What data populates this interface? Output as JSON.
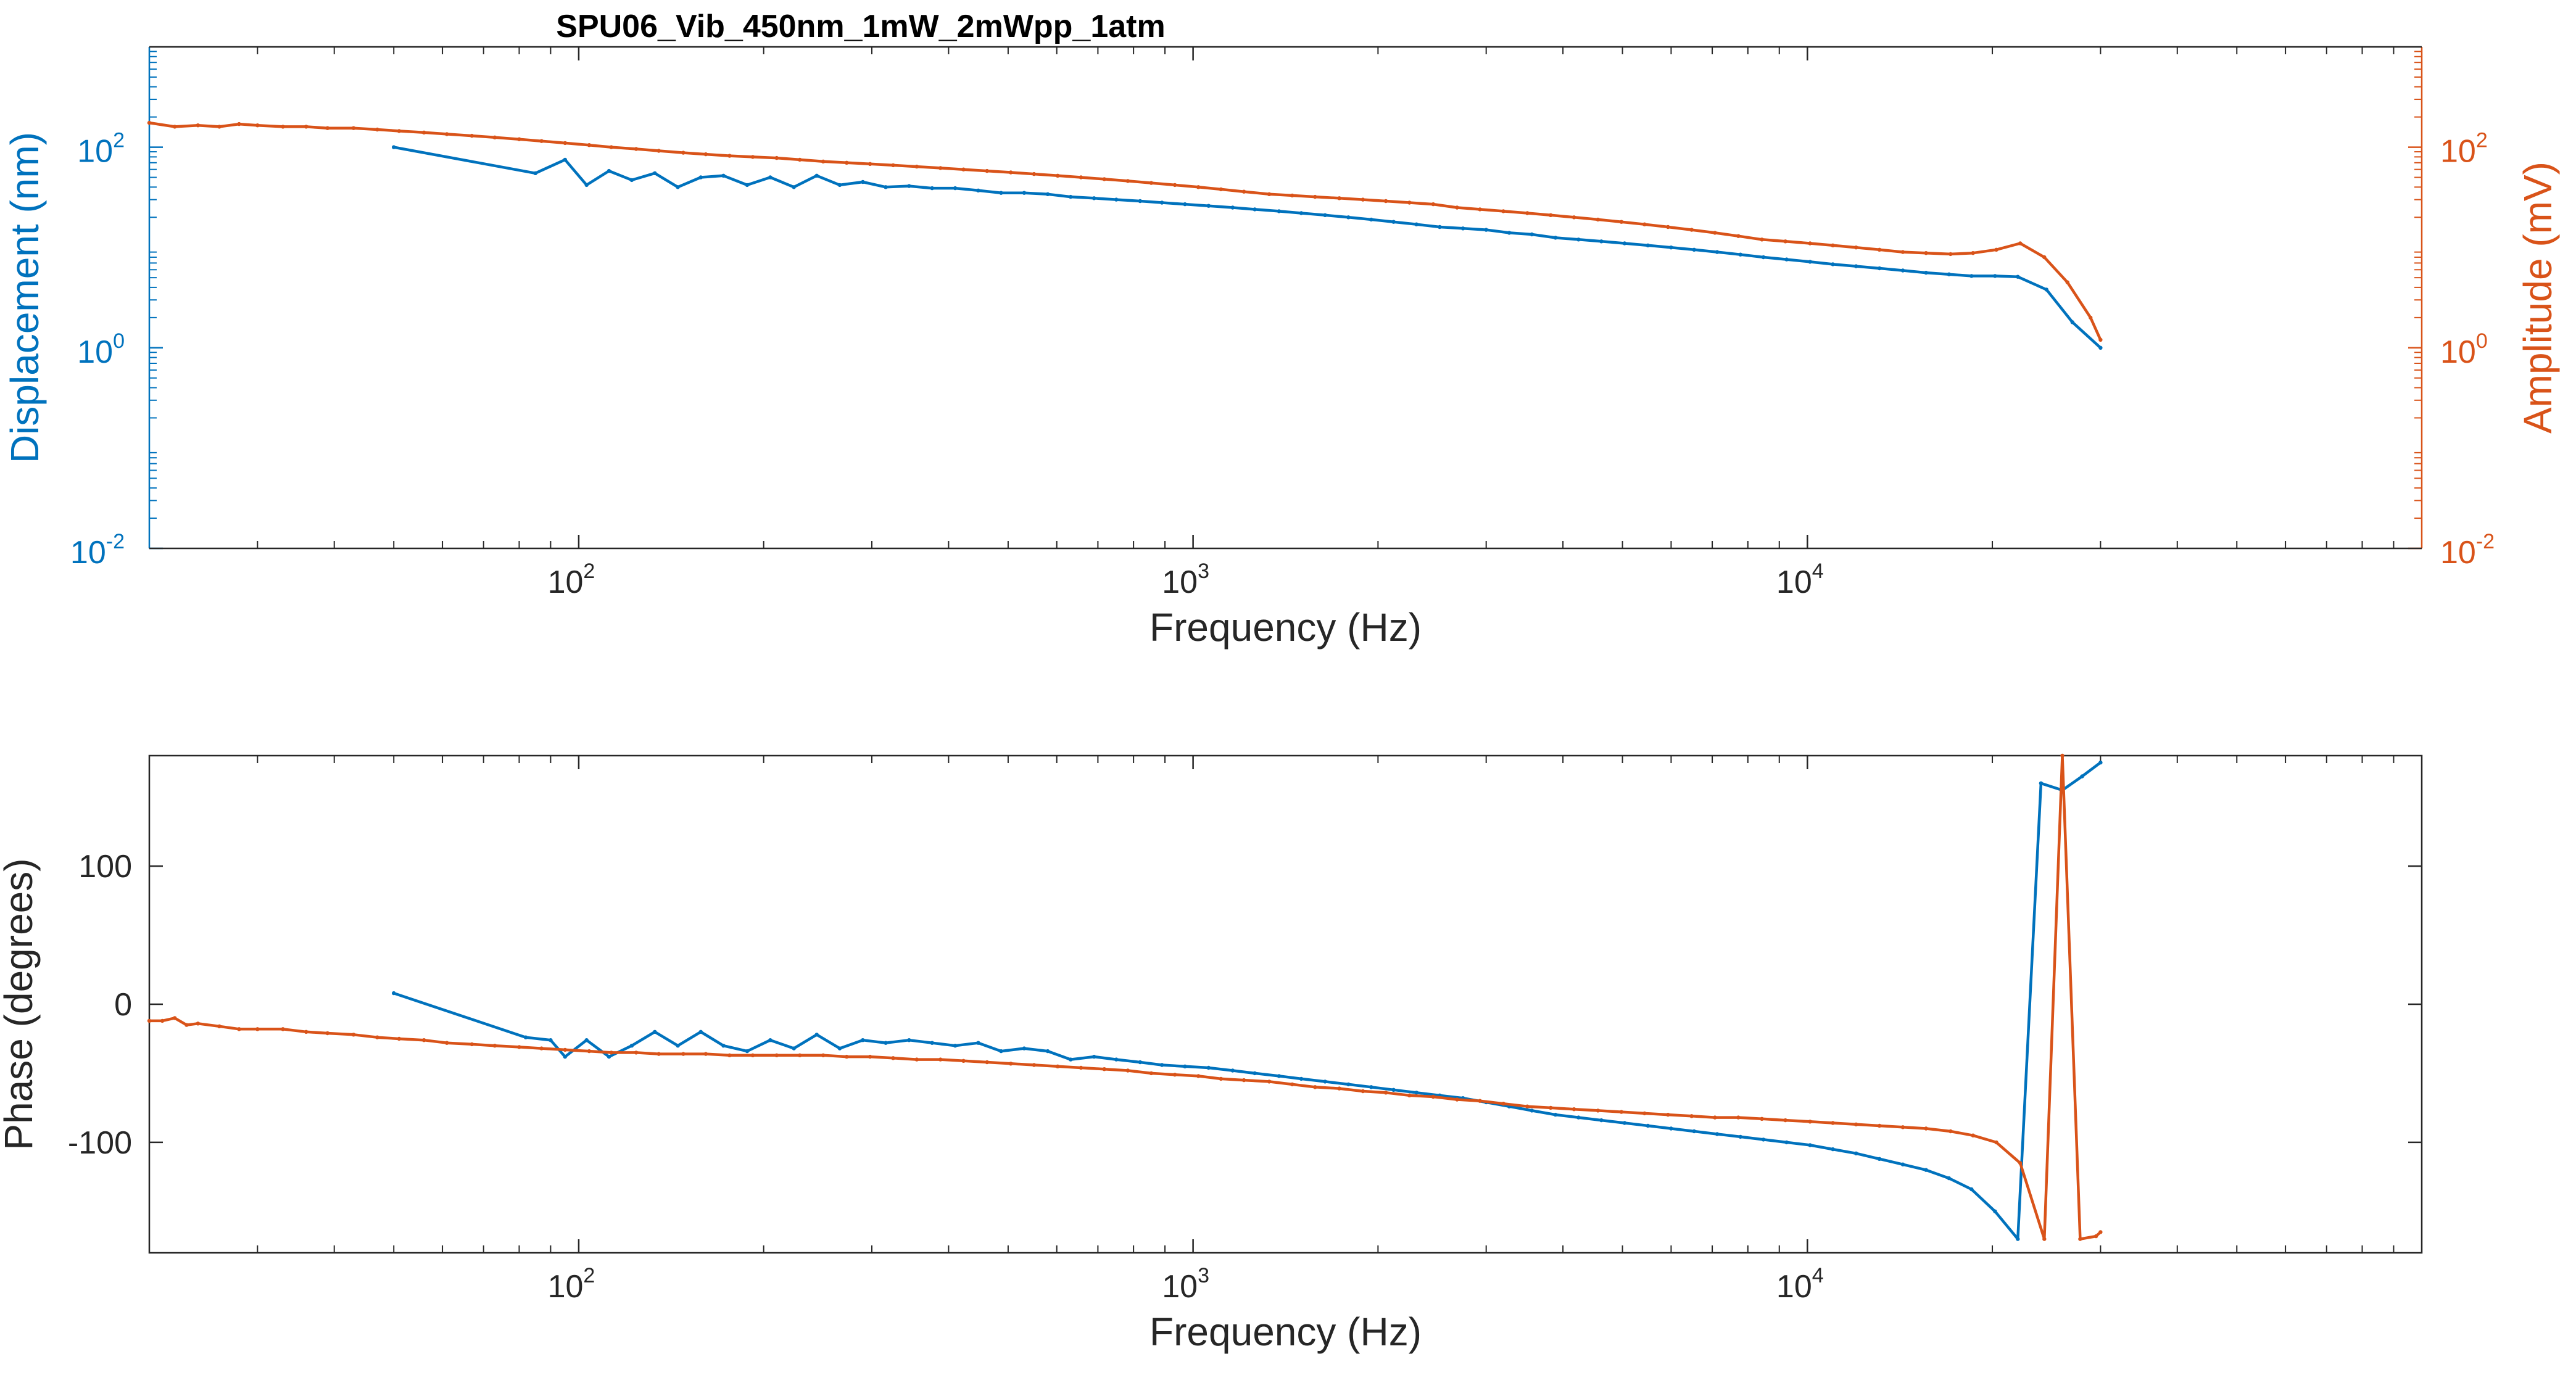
{
  "title": "SPU06_Vib_450nm_1mW_2mWpp_1atm",
  "colors": {
    "blue": "#0072BD",
    "orange": "#D95319",
    "axis": "#262626"
  },
  "chart_data": [
    {
      "type": "line",
      "title": "SPU06_Vib_450nm_1mW_2mWpp_1atm",
      "xlabel": "Frequency (Hz)",
      "ylabel_left": "Displacement (nm)",
      "ylabel_right": "Amplitude (mV)",
      "xscale": "log",
      "yscale": "log",
      "xlim": [
        20,
        100000
      ],
      "ylim_left": [
        0.01,
        1000
      ],
      "ylim_right": [
        0.01,
        1000
      ],
      "xticks": [
        {
          "base": "10",
          "exp": "2"
        },
        {
          "base": "10",
          "exp": "3"
        },
        {
          "base": "10",
          "exp": "4"
        }
      ],
      "yticks_left": [
        {
          "base": "10",
          "exp": "-2"
        },
        {
          "base": "10",
          "exp": "0"
        },
        {
          "base": "10",
          "exp": "2"
        }
      ],
      "yticks_right": [
        {
          "base": "10",
          "exp": "-2"
        },
        {
          "base": "10",
          "exp": "0"
        },
        {
          "base": "10",
          "exp": "2"
        }
      ],
      "grid": false,
      "series": [
        {
          "axis": "left",
          "color": "#0072BD",
          "x": [
            50,
            85,
            95,
            103,
            112,
            122,
            133,
            145,
            158,
            172,
            188,
            205,
            224,
            244,
            266,
            290,
            316,
            345,
            376,
            410,
            447,
            487,
            531,
            580,
            632,
            690,
            750,
            820,
            890,
            970,
            1060,
            1160,
            1260,
            1380,
            1500,
            1640,
            1790,
            1950,
            2120,
            2310,
            2520,
            2750,
            3000,
            3270,
            3560,
            3890,
            4240,
            4620,
            5040,
            5500,
            6000,
            6540,
            7130,
            7780,
            8480,
            9250,
            10100,
            11000,
            12000,
            13100,
            14300,
            15600,
            17000,
            18500,
            20200,
            22000,
            24500,
            27000,
            30000
          ],
          "y": [
            100,
            55,
            75,
            42,
            58,
            47,
            55,
            40,
            50,
            52,
            42,
            50,
            40,
            52,
            42,
            45,
            40,
            41,
            39,
            39,
            37,
            35,
            35,
            34,
            32,
            31,
            30,
            29,
            28,
            27,
            26,
            25,
            24,
            23,
            22,
            21,
            20,
            19,
            18,
            17,
            16,
            15.5,
            15,
            14,
            13.5,
            12.5,
            12,
            11.5,
            11,
            10.5,
            10,
            9.5,
            9,
            8.5,
            8,
            7.6,
            7.2,
            6.8,
            6.5,
            6.2,
            5.9,
            5.6,
            5.4,
            5.2,
            5.2,
            5.1,
            3.8,
            1.8,
            1.0
          ]
        },
        {
          "axis": "right",
          "color": "#D95319",
          "x": [
            20,
            22,
            24,
            26,
            28,
            30,
            33,
            36,
            39,
            43,
            47,
            51,
            56,
            61,
            67,
            73,
            80,
            87,
            95,
            104,
            113,
            124,
            135,
            148,
            161,
            176,
            192,
            210,
            229,
            250,
            273,
            298,
            325,
            355,
            388,
            423,
            462,
            505,
            551,
            602,
            657,
            717,
            783,
            855,
            934,
            1020,
            1110,
            1210,
            1330,
            1450,
            1580,
            1730,
            1890,
            2060,
            2250,
            2460,
            2690,
            2930,
            3200,
            3500,
            3820,
            4170,
            4560,
            4980,
            5430,
            5930,
            6480,
            7070,
            7720,
            8430,
            9210,
            10100,
            11000,
            12000,
            13100,
            14300,
            15600,
            17100,
            18600,
            20300,
            22200,
            24300,
            26500,
            28900,
            30000
          ],
          "y": [
            175,
            160,
            165,
            160,
            170,
            165,
            160,
            160,
            155,
            155,
            150,
            145,
            140,
            135,
            130,
            125,
            120,
            115,
            110,
            105,
            100,
            96,
            92,
            88,
            85,
            82,
            80,
            78,
            75,
            72,
            70,
            68,
            66,
            64,
            62,
            60,
            58,
            56,
            54,
            52,
            50,
            48,
            46,
            44,
            42,
            40,
            38,
            36,
            34,
            33,
            32,
            31,
            30,
            29,
            28,
            27,
            25,
            24,
            23,
            22,
            21,
            20,
            19,
            18,
            17,
            16,
            15,
            14,
            13,
            12,
            11.5,
            11,
            10.5,
            10,
            9.5,
            9,
            8.8,
            8.6,
            8.8,
            9.5,
            11,
            8,
            4.5,
            2,
            1.2
          ]
        }
      ]
    },
    {
      "type": "line",
      "xlabel": "Frequency (Hz)",
      "ylabel": "Phase (degrees)",
      "xscale": "log",
      "xlim": [
        20,
        100000
      ],
      "ylim": [
        -180,
        180
      ],
      "xticks": [
        {
          "base": "10",
          "exp": "2"
        },
        {
          "base": "10",
          "exp": "3"
        },
        {
          "base": "10",
          "exp": "4"
        }
      ],
      "yticks": [
        "100",
        "0",
        "-100"
      ],
      "ytick_values": [
        100,
        0,
        -100
      ],
      "grid": false,
      "series": [
        {
          "color": "#0072BD",
          "x": [
            50,
            82,
            90,
            95,
            103,
            112,
            122,
            133,
            145,
            158,
            172,
            188,
            205,
            224,
            244,
            266,
            290,
            316,
            345,
            376,
            410,
            447,
            487,
            531,
            580,
            632,
            690,
            750,
            820,
            890,
            970,
            1060,
            1160,
            1260,
            1380,
            1500,
            1640,
            1790,
            1950,
            2120,
            2310,
            2520,
            2750,
            3000,
            3270,
            3560,
            3890,
            4240,
            4620,
            5040,
            5500,
            6000,
            6540,
            7130,
            7780,
            8480,
            9250,
            10100,
            11000,
            12000,
            13100,
            14300,
            15600,
            17000,
            18500,
            20200,
            22000,
            24000,
            26000,
            28000,
            30000
          ],
          "y": [
            8,
            -24,
            -26,
            -38,
            -26,
            -38,
            -30,
            -20,
            -30,
            -20,
            -30,
            -34,
            -26,
            -32,
            -22,
            -32,
            -26,
            -28,
            -26,
            -28,
            -30,
            -28,
            -34,
            -32,
            -34,
            -40,
            -38,
            -40,
            -42,
            -44,
            -45,
            -46,
            -48,
            -50,
            -52,
            -54,
            -56,
            -58,
            -60,
            -62,
            -64,
            -66,
            -68,
            -71,
            -74,
            -77,
            -80,
            -82,
            -84,
            -86,
            -88,
            -90,
            -92,
            -94,
            -96,
            -98,
            -100,
            -102,
            -105,
            -108,
            -112,
            -116,
            -120,
            -126,
            -134,
            -150,
            -170,
            160,
            155,
            165,
            175
          ]
        },
        {
          "color": "#D95319",
          "x": [
            20,
            21,
            22,
            23,
            24,
            26,
            28,
            30,
            33,
            36,
            39,
            43,
            47,
            51,
            56,
            61,
            67,
            73,
            80,
            87,
            95,
            104,
            113,
            124,
            135,
            148,
            161,
            176,
            192,
            210,
            229,
            250,
            273,
            298,
            325,
            355,
            388,
            423,
            462,
            505,
            551,
            602,
            657,
            717,
            783,
            855,
            934,
            1020,
            1110,
            1210,
            1330,
            1450,
            1580,
            1730,
            1890,
            2060,
            2250,
            2460,
            2690,
            2930,
            3200,
            3500,
            3820,
            4170,
            4560,
            4980,
            5430,
            5930,
            6480,
            7070,
            7720,
            8430,
            9210,
            10100,
            11000,
            12000,
            13100,
            14300,
            15600,
            17100,
            18600,
            20300,
            22200,
            24300,
            26000,
            27800,
            29500,
            30000
          ],
          "y": [
            -12,
            -12,
            -10,
            -15,
            -14,
            -16,
            -18,
            -18,
            -18,
            -20,
            -21,
            -22,
            -24,
            -25,
            -26,
            -28,
            -29,
            -30,
            -31,
            -32,
            -33,
            -34,
            -35,
            -35,
            -36,
            -36,
            -36,
            -37,
            -37,
            -37,
            -37,
            -37,
            -38,
            -38,
            -39,
            -40,
            -40,
            -41,
            -42,
            -43,
            -44,
            -45,
            -46,
            -47,
            -48,
            -50,
            -51,
            -52,
            -54,
            -55,
            -56,
            -58,
            -60,
            -61,
            -63,
            -64,
            -66,
            -67,
            -69,
            -70,
            -72,
            -74,
            -75,
            -76,
            -77,
            -78,
            -79,
            -80,
            -81,
            -82,
            -82,
            -83,
            -84,
            -85,
            -86,
            -87,
            -88,
            -89,
            -90,
            -92,
            -95,
            -100,
            -115,
            -170,
            180,
            -170,
            -168,
            -165
          ]
        }
      ]
    }
  ]
}
